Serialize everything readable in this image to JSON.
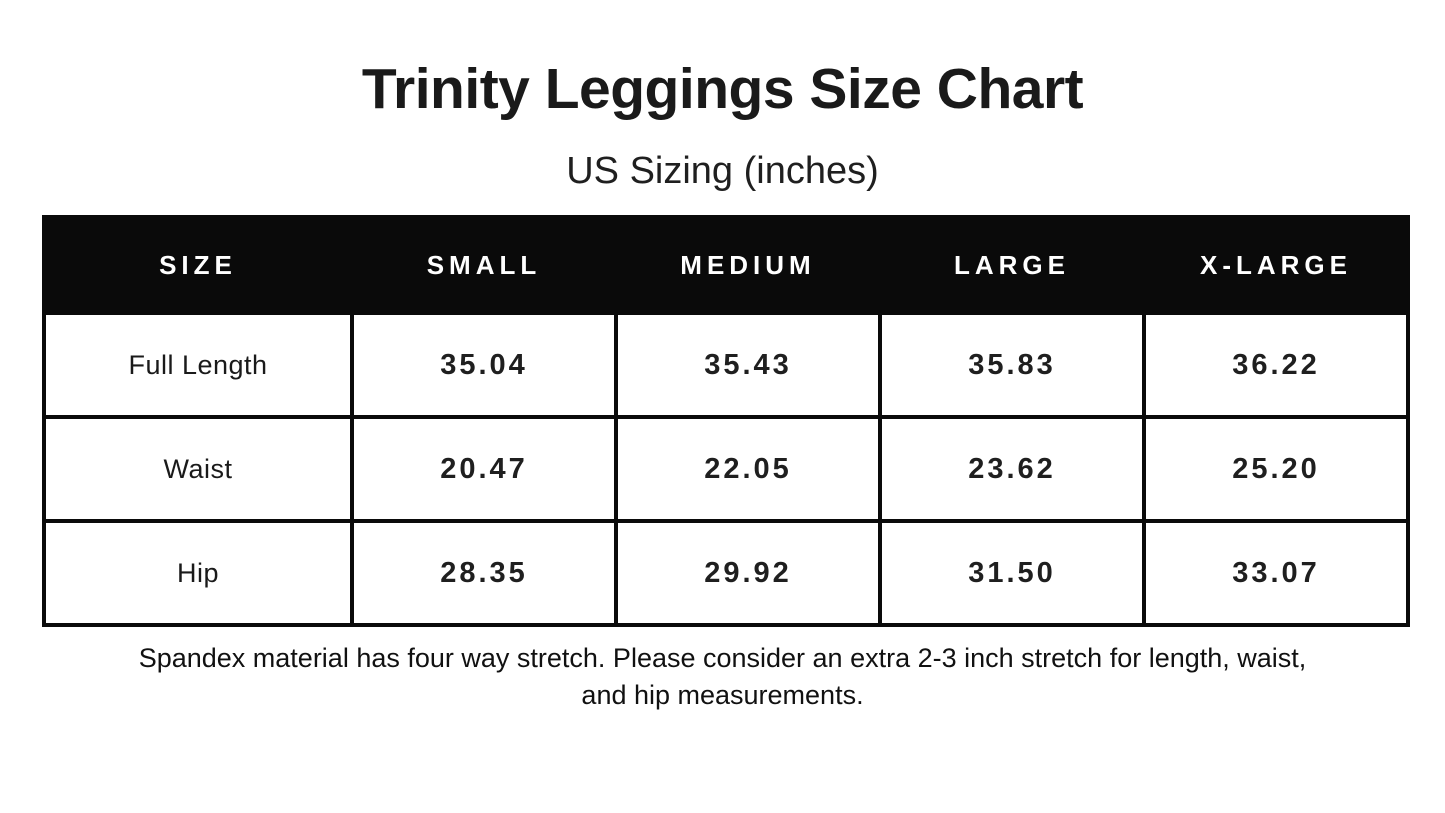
{
  "page": {
    "title": "Trinity Leggings Size Chart",
    "subtitle": "US Sizing (inches)",
    "footnote_full": "Spandex material has four way stretch. Please consider an extra 2-3 inch stretch for length, waist, and hip measurements.",
    "footnote_lines": [
      "Spandex material has four way stretch. Please consider an extra 2-3 inch stretch for length, waist,",
      "and hip measurements."
    ]
  },
  "colors": {
    "background": "#ffffff",
    "header_bg": "#0a0a0a",
    "header_text": "#ffffff",
    "border": "#0a0a0a",
    "body_text": "#1a1a1a"
  },
  "table": {
    "headers": [
      "SIZE",
      "SMALL",
      "MEDIUM",
      "LARGE",
      "X-LARGE"
    ],
    "rows": [
      {
        "label": "Full Length",
        "values": [
          "35.04",
          "35.43",
          "35.83",
          "36.22"
        ]
      },
      {
        "label": "Waist",
        "values": [
          "20.47",
          "22.05",
          "23.62",
          "25.20"
        ]
      },
      {
        "label": "Hip",
        "values": [
          "28.35",
          "29.92",
          "31.50",
          "33.07"
        ]
      }
    ]
  },
  "chart_data": {
    "type": "table",
    "title": "Trinity Leggings Size Chart",
    "subtitle": "US Sizing (inches)",
    "columns": [
      "SIZE",
      "SMALL",
      "MEDIUM",
      "LARGE",
      "X-LARGE"
    ],
    "rows": [
      [
        "Full Length",
        35.04,
        35.43,
        35.83,
        36.22
      ],
      [
        "Waist",
        20.47,
        22.05,
        23.62,
        25.2
      ],
      [
        "Hip",
        28.35,
        29.92,
        31.5,
        33.07
      ]
    ],
    "units": "inches",
    "note": "Spandex material has four way stretch. Please consider an extra 2-3 inch stretch for length, waist, and hip measurements."
  }
}
